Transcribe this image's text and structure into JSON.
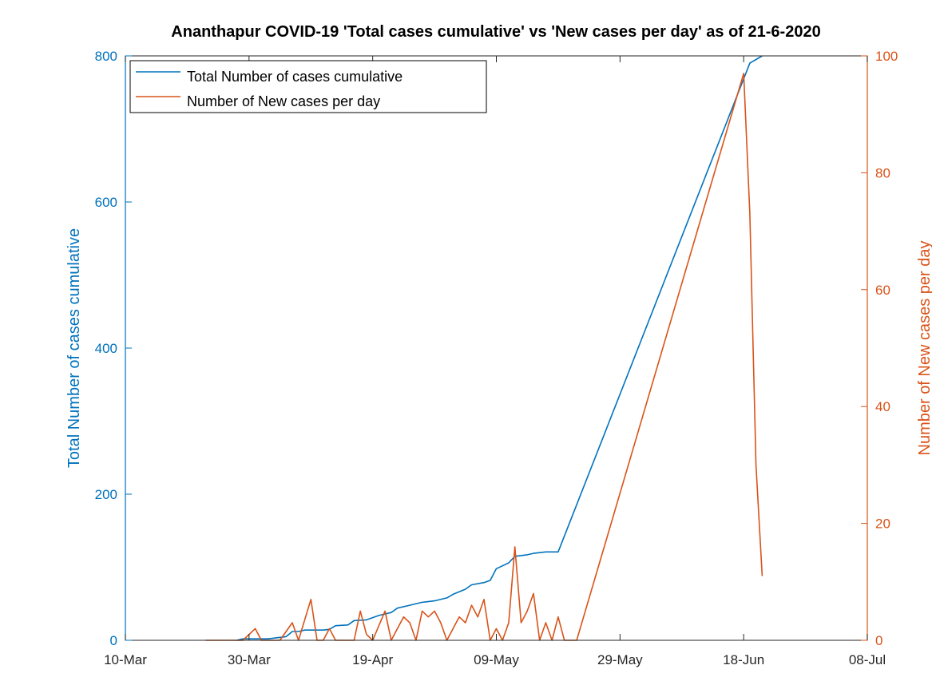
{
  "chart_data": {
    "type": "line",
    "title": "Ananthapur COVID-19 'Total cases cumulative' vs 'New cases per day' as of 21-6-2020",
    "xlim": [
      "2020-03-10",
      "2020-07-08"
    ],
    "x_ticks": [
      {
        "date": "2020-03-10",
        "label": "10-Mar"
      },
      {
        "date": "2020-03-30",
        "label": "30-Mar"
      },
      {
        "date": "2020-04-19",
        "label": "19-Apr"
      },
      {
        "date": "2020-05-09",
        "label": "09-May"
      },
      {
        "date": "2020-05-29",
        "label": "29-May"
      },
      {
        "date": "2020-06-18",
        "label": "18-Jun"
      },
      {
        "date": "2020-07-08",
        "label": "08-Jul"
      }
    ],
    "y_left": {
      "label": "Total Number of cases cumulative",
      "ylim": [
        0,
        800
      ],
      "ticks": [
        0,
        200,
        400,
        600,
        800
      ],
      "color": "#0072BD"
    },
    "y_right": {
      "label": "Number of New cases per day",
      "ylim": [
        0,
        100
      ],
      "ticks": [
        0,
        20,
        40,
        60,
        80,
        100
      ],
      "color": "#D95319"
    },
    "legend": {
      "location": "top-left",
      "entries": [
        "Total Number of cases cumulative",
        "Number of New cases per day"
      ]
    },
    "grid": false,
    "series": [
      {
        "name": "Total Number of cases cumulative",
        "axis": "left",
        "color": "#0072BD",
        "points": [
          [
            "2020-03-28",
            0
          ],
          [
            "2020-03-29",
            2
          ],
          [
            "2020-04-02",
            2
          ],
          [
            "2020-04-03",
            3
          ],
          [
            "2020-04-05",
            5
          ],
          [
            "2020-04-06",
            12
          ],
          [
            "2020-04-07",
            12
          ],
          [
            "2020-04-08",
            14
          ],
          [
            "2020-04-11",
            14
          ],
          [
            "2020-04-12",
            15
          ],
          [
            "2020-04-13",
            20
          ],
          [
            "2020-04-15",
            21
          ],
          [
            "2020-04-16",
            27
          ],
          [
            "2020-04-18",
            28
          ],
          [
            "2020-04-20",
            34
          ],
          [
            "2020-04-22",
            38
          ],
          [
            "2020-04-23",
            44
          ],
          [
            "2020-04-25",
            48
          ],
          [
            "2020-04-27",
            52
          ],
          [
            "2020-04-29",
            54
          ],
          [
            "2020-05-01",
            58
          ],
          [
            "2020-05-02",
            63
          ],
          [
            "2020-05-04",
            70
          ],
          [
            "2020-05-05",
            76
          ],
          [
            "2020-05-07",
            79
          ],
          [
            "2020-05-08",
            82
          ],
          [
            "2020-05-09",
            98
          ],
          [
            "2020-05-11",
            106
          ],
          [
            "2020-05-12",
            115
          ],
          [
            "2020-05-14",
            117
          ],
          [
            "2020-05-15",
            119
          ],
          [
            "2020-05-17",
            121
          ],
          [
            "2020-05-19",
            121
          ],
          [
            "2020-06-19",
            790
          ],
          [
            "2020-06-21",
            800
          ]
        ]
      },
      {
        "name": "Number of New cases per day",
        "axis": "right",
        "color": "#D95319",
        "points": [
          [
            "2020-03-23",
            0
          ],
          [
            "2020-03-29",
            0
          ],
          [
            "2020-03-31",
            2
          ],
          [
            "2020-04-01",
            0
          ],
          [
            "2020-04-04",
            0
          ],
          [
            "2020-04-06",
            3
          ],
          [
            "2020-04-07",
            0
          ],
          [
            "2020-04-09",
            7
          ],
          [
            "2020-04-10",
            0
          ],
          [
            "2020-04-11",
            0
          ],
          [
            "2020-04-12",
            2
          ],
          [
            "2020-04-13",
            0
          ],
          [
            "2020-04-16",
            0
          ],
          [
            "2020-04-17",
            5
          ],
          [
            "2020-04-18",
            1
          ],
          [
            "2020-04-19",
            0
          ],
          [
            "2020-04-21",
            5
          ],
          [
            "2020-04-22",
            0
          ],
          [
            "2020-04-23",
            2
          ],
          [
            "2020-04-24",
            4
          ],
          [
            "2020-04-25",
            3
          ],
          [
            "2020-04-26",
            0
          ],
          [
            "2020-04-27",
            5
          ],
          [
            "2020-04-28",
            4
          ],
          [
            "2020-04-29",
            5
          ],
          [
            "2020-04-30",
            3
          ],
          [
            "2020-05-01",
            0
          ],
          [
            "2020-05-02",
            2
          ],
          [
            "2020-05-03",
            4
          ],
          [
            "2020-05-04",
            3
          ],
          [
            "2020-05-05",
            6
          ],
          [
            "2020-05-06",
            4
          ],
          [
            "2020-05-07",
            7
          ],
          [
            "2020-05-08",
            0
          ],
          [
            "2020-05-09",
            2
          ],
          [
            "2020-05-10",
            0
          ],
          [
            "2020-05-11",
            3
          ],
          [
            "2020-05-12",
            16
          ],
          [
            "2020-05-13",
            3
          ],
          [
            "2020-05-14",
            5
          ],
          [
            "2020-05-15",
            8
          ],
          [
            "2020-05-16",
            0
          ],
          [
            "2020-05-17",
            3
          ],
          [
            "2020-05-18",
            0
          ],
          [
            "2020-05-19",
            4
          ],
          [
            "2020-05-20",
            0
          ],
          [
            "2020-05-21",
            0
          ],
          [
            "2020-05-22",
            0
          ],
          [
            "2020-06-18",
            97
          ],
          [
            "2020-06-19",
            73
          ],
          [
            "2020-06-20",
            30
          ],
          [
            "2020-06-21",
            11
          ]
        ]
      }
    ]
  }
}
